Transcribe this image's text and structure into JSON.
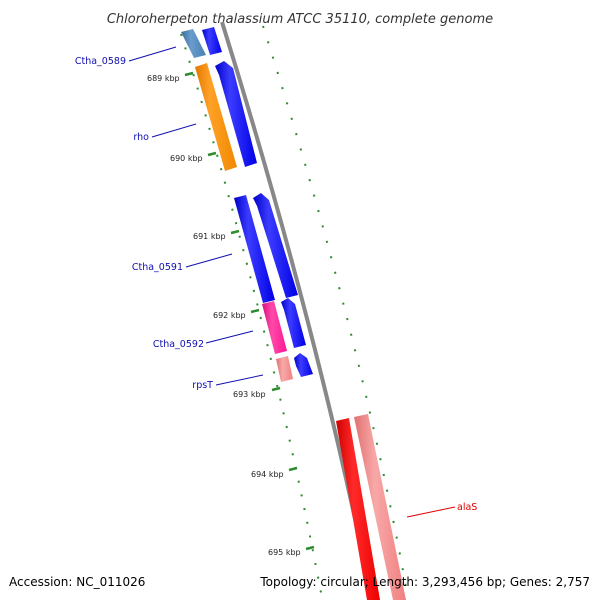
{
  "title": "Chloroherpeton thalassium ATCC 35110, complete genome",
  "accession": "Accession: NC_011026",
  "summary": "Topology: circular; Length: 3,293,456 bp; Genes: 2,757",
  "colors": {
    "backbone": "#808080",
    "tick": "#2e8b2e",
    "label_blue": "#1010b0",
    "label_red": "#e00000",
    "cds_blue": "#0000ff",
    "cds_orange": "#ff8c00",
    "cds_steel": "#4682b4",
    "cds_pink": "#ff1493",
    "rrna_red": "#ff0000",
    "rrna_salmon": "#f08080"
  },
  "ticks": [
    {
      "label": "689 kbp"
    },
    {
      "label": "690 kbp"
    },
    {
      "label": "691 kbp"
    },
    {
      "label": "692 kbp"
    },
    {
      "label": "693 kbp"
    },
    {
      "label": "694 kbp"
    },
    {
      "label": "695 kbp"
    }
  ],
  "gene_labels": [
    {
      "text": "Ctha_0589",
      "color": "#1010b0"
    },
    {
      "text": "rho",
      "color": "#1010b0"
    },
    {
      "text": "Ctha_0591",
      "color": "#1010b0"
    },
    {
      "text": "Ctha_0592",
      "color": "#1010b0"
    },
    {
      "text": "rpsT",
      "color": "#1010b0"
    },
    {
      "text": "alaS",
      "color": "#e00000"
    }
  ]
}
